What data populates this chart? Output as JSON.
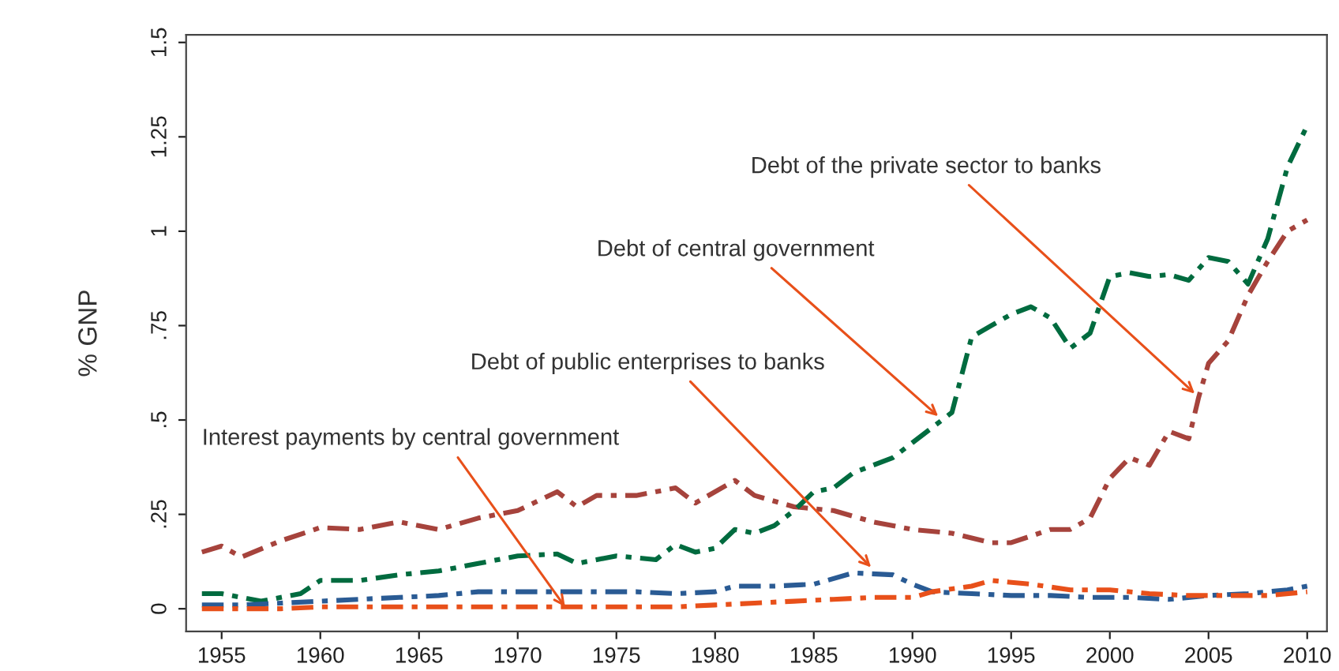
{
  "chart_data": {
    "type": "line",
    "ylabel": "% GNP",
    "xlim": [
      1953.2,
      2011
    ],
    "xticks": [
      1955,
      1960,
      1965,
      1970,
      1975,
      1980,
      1985,
      1990,
      1995,
      2000,
      2005,
      2010
    ],
    "ylim": [
      -0.06,
      1.52
    ],
    "yticks": [
      {
        "value": 0,
        "label": "0"
      },
      {
        "value": 0.25,
        "label": ".25"
      },
      {
        "value": 0.5,
        "label": ".5"
      },
      {
        "value": 0.75,
        "label": ".75"
      },
      {
        "value": 1,
        "label": "1"
      },
      {
        "value": 1.25,
        "label": "1.25"
      },
      {
        "value": 1.5,
        "label": "1.5"
      }
    ],
    "grid": false,
    "line_style": "dashdot",
    "marker": "none",
    "series": [
      {
        "color": "#a6433c",
        "x": [
          1954,
          1955,
          1956,
          1958,
          1960,
          1962,
          1964,
          1966,
          1968,
          1970,
          1972,
          1973,
          1974,
          1976,
          1978,
          1979,
          1981,
          1982,
          1984,
          1986,
          1988,
          1990,
          1992,
          1994,
          1995,
          1997,
          1998,
          1999,
          2000,
          2001,
          2002,
          2003,
          2004,
          2004.5,
          2005,
          2006,
          2007,
          2008,
          2009,
          2010
        ],
        "values": [
          0.15,
          0.166,
          0.137,
          0.18,
          0.215,
          0.21,
          0.23,
          0.21,
          0.24,
          0.26,
          0.31,
          0.27,
          0.3,
          0.3,
          0.32,
          0.28,
          0.34,
          0.3,
          0.27,
          0.26,
          0.23,
          0.21,
          0.2,
          0.175,
          0.175,
          0.21,
          0.21,
          0.24,
          0.345,
          0.4,
          0.38,
          0.47,
          0.45,
          0.56,
          0.65,
          0.71,
          0.83,
          0.92,
          1.0,
          1.03
        ]
      },
      {
        "color": "#006b3f",
        "x": [
          1954,
          1955,
          1956,
          1957,
          1958,
          1959,
          1960,
          1962,
          1964,
          1966,
          1968,
          1970,
          1972,
          1973,
          1975,
          1977,
          1978,
          1979,
          1980,
          1981,
          1982,
          1983,
          1984,
          1985,
          1986,
          1987,
          1988,
          1989,
          1990,
          1991,
          1992,
          1993,
          1994,
          1995,
          1996,
          1997,
          1998,
          1999,
          2000,
          2001,
          2002,
          2003,
          2004,
          2005,
          2006,
          2007,
          2008,
          2009,
          2010
        ],
        "values": [
          0.04,
          0.04,
          0.03,
          0.02,
          0.03,
          0.04,
          0.075,
          0.075,
          0.09,
          0.1,
          0.12,
          0.14,
          0.145,
          0.12,
          0.14,
          0.13,
          0.17,
          0.15,
          0.16,
          0.21,
          0.2,
          0.22,
          0.26,
          0.31,
          0.32,
          0.36,
          0.38,
          0.4,
          0.44,
          0.48,
          0.52,
          0.72,
          0.75,
          0.78,
          0.8,
          0.77,
          0.69,
          0.73,
          0.88,
          0.89,
          0.88,
          0.885,
          0.87,
          0.93,
          0.92,
          0.86,
          0.98,
          1.17,
          1.28
        ]
      },
      {
        "color": "#2a5b94",
        "x": [
          1954,
          1956,
          1958,
          1960,
          1962,
          1964,
          1966,
          1968,
          1970,
          1972,
          1974,
          1976,
          1978,
          1980,
          1981,
          1983,
          1985,
          1987,
          1989,
          1990,
          1991,
          1993,
          1995,
          1997,
          1999,
          2001,
          2003,
          2005,
          2007,
          2009,
          2010
        ],
        "values": [
          0.01,
          0.01,
          0.015,
          0.02,
          0.025,
          0.03,
          0.035,
          0.045,
          0.045,
          0.045,
          0.045,
          0.045,
          0.04,
          0.045,
          0.06,
          0.06,
          0.065,
          0.095,
          0.09,
          0.065,
          0.045,
          0.04,
          0.035,
          0.035,
          0.03,
          0.03,
          0.025,
          0.035,
          0.04,
          0.05,
          0.06
        ]
      },
      {
        "color": "#e8501a",
        "x": [
          1954,
          1956,
          1958,
          1960,
          1965,
          1970,
          1975,
          1978,
          1980,
          1982,
          1984,
          1986,
          1988,
          1990,
          1991,
          1993,
          1994,
          1996,
          1998,
          2000,
          2002,
          2004,
          2006,
          2008,
          2010
        ],
        "values": [
          0,
          0,
          0,
          0.005,
          0.005,
          0.005,
          0.005,
          0.005,
          0.01,
          0.015,
          0.02,
          0.025,
          0.03,
          0.03,
          0.045,
          0.06,
          0.075,
          0.065,
          0.05,
          0.05,
          0.04,
          0.035,
          0.035,
          0.035,
          0.045
        ]
      }
    ],
    "annotations": [
      {
        "text": "Debt of the private sector to banks",
        "x": 2004.3,
        "y": 0.57
      },
      {
        "text": "Debt of central government",
        "x": 1991.3,
        "y": 0.51
      },
      {
        "text": "Debt of public enterprises to banks",
        "x": 1987.9,
        "y": 0.11
      },
      {
        "text": "Interest payments by central government",
        "x": 1972.4,
        "y": 0.005
      }
    ]
  }
}
